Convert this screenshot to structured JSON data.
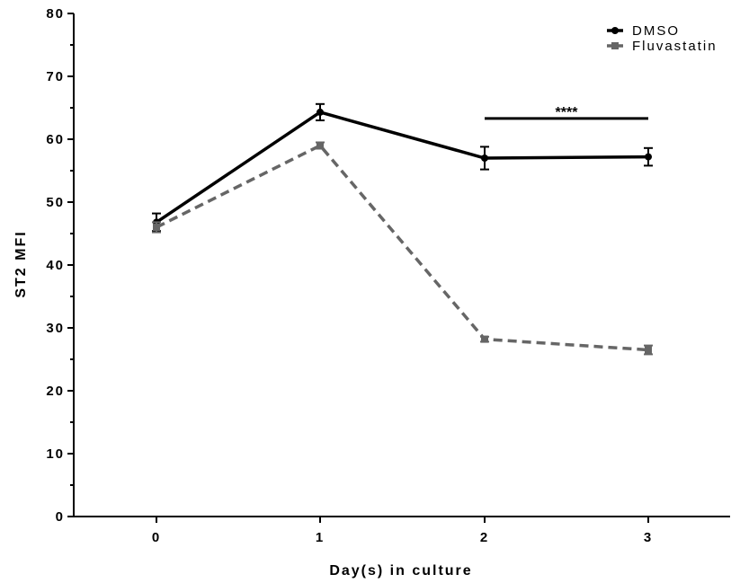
{
  "chart_data": {
    "type": "line",
    "title": "",
    "xlabel": "Day(s) in culture",
    "ylabel": "ST2 MFI",
    "categories": [
      "0",
      "1",
      "2",
      "3"
    ],
    "x": [
      0,
      1,
      2,
      3
    ],
    "ylim": [
      0,
      80
    ],
    "yticks": [
      "0",
      "10",
      "20",
      "30",
      "40",
      "50",
      "60",
      "70",
      "80"
    ],
    "grid": false,
    "legend": "top-right",
    "series": [
      {
        "name": "DMSO",
        "values": [
          46.8,
          64.3,
          57.0,
          57.2
        ],
        "errors": [
          1.4,
          1.3,
          1.8,
          1.4
        ],
        "color": "#000000",
        "style": "solid",
        "marker": "circle"
      },
      {
        "name": "Fluvastatin",
        "values": [
          46.0,
          59.0,
          28.2,
          26.5
        ],
        "errors": [
          0.8,
          0.5,
          0.4,
          0.7
        ],
        "color": "#666666",
        "style": "dashed",
        "marker": "square"
      }
    ],
    "annotations": [
      {
        "text": "****",
        "from_x": 2,
        "to_x": 3,
        "y": 63.3
      }
    ]
  }
}
